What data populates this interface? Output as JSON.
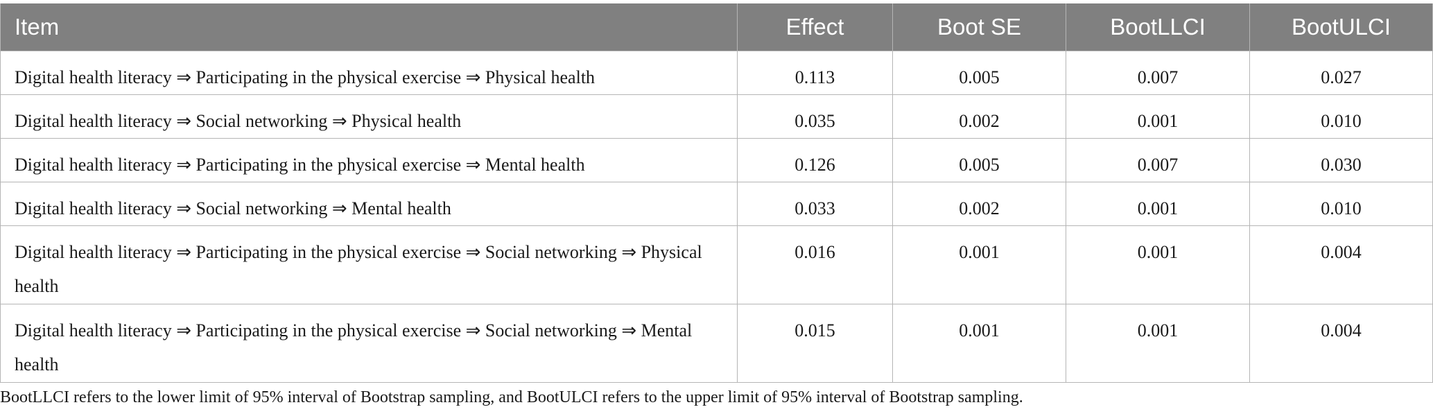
{
  "table": {
    "headers": {
      "item": "Item",
      "effect": "Effect",
      "boot_se": "Boot SE",
      "boot_llci": "BootLLCI",
      "boot_ulci": "BootULCI"
    },
    "rows": [
      {
        "item": "Digital health literacy ⇒ Participating in the physical exercise ⇒ Physical health",
        "effect": "0.113",
        "boot_se": "0.005",
        "boot_llci": "0.007",
        "boot_ulci": "0.027"
      },
      {
        "item": "Digital health literacy ⇒ Social networking ⇒ Physical health",
        "effect": "0.035",
        "boot_se": "0.002",
        "boot_llci": "0.001",
        "boot_ulci": "0.010"
      },
      {
        "item": "Digital health literacy ⇒ Participating in the physical exercise ⇒ Mental health",
        "effect": "0.126",
        "boot_se": "0.005",
        "boot_llci": "0.007",
        "boot_ulci": "0.030"
      },
      {
        "item": "Digital health literacy ⇒ Social networking ⇒ Mental health",
        "effect": "0.033",
        "boot_se": "0.002",
        "boot_llci": "0.001",
        "boot_ulci": "0.010"
      },
      {
        "item": "Digital health literacy ⇒ Participating in the physical exercise ⇒ Social networking ⇒ Physical health",
        "effect": "0.016",
        "boot_se": "0.001",
        "boot_llci": "0.001",
        "boot_ulci": "0.004"
      },
      {
        "item": "Digital health literacy ⇒ Participating in the physical exercise ⇒ Social networking ⇒ Mental health",
        "effect": "0.015",
        "boot_se": "0.001",
        "boot_llci": "0.001",
        "boot_ulci": "0.004"
      }
    ]
  },
  "footnote": "BootLLCI refers to the lower limit of 95% interval of Bootstrap sampling, and BootULCI refers to the upper limit of 95% interval of Bootstrap sampling.",
  "colors": {
    "header_background": "#808080",
    "header_text": "#ffffff",
    "grid_line": "#b5b5b5"
  }
}
